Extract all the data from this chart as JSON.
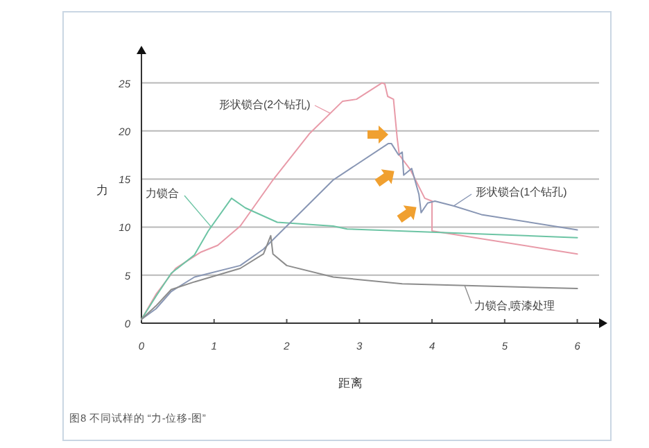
{
  "chart_data": {
    "type": "line",
    "xlabel": "距离",
    "ylabel": "力",
    "xlim": [
      0,
      6.3
    ],
    "ylim": [
      0,
      28
    ],
    "xticks": [
      0,
      1,
      2,
      3,
      4,
      5,
      6
    ],
    "yticks": [
      0,
      5,
      10,
      15,
      20,
      25
    ],
    "grid": "y",
    "annotations": [
      "图8 不同试样的 “力-位移-图”"
    ],
    "series": [
      {
        "name": "形状锁合(2个钻孔)",
        "color": "#e89aa8",
        "x": [
          0,
          0.2,
          0.47,
          0.82,
          1.05,
          1.36,
          1.81,
          2.31,
          2.77,
          2.96,
          3.31,
          3.35,
          3.39,
          3.47,
          3.52,
          3.55,
          3.7,
          3.9,
          4.0,
          4.0,
          6.0
        ],
        "values": [
          0.4,
          3,
          5.7,
          7.4,
          8.1,
          10.1,
          14.9,
          19.7,
          23.1,
          23.3,
          25,
          24.9,
          23.6,
          23.3,
          19.3,
          17.5,
          16,
          13,
          12.7,
          9.6,
          7.2
        ]
      },
      {
        "name": "力锁合",
        "color": "#6cc4a4",
        "x": [
          0,
          0.2,
          0.41,
          0.73,
          0.92,
          1.24,
          1.43,
          1.87,
          2.64,
          2.83,
          6.0
        ],
        "values": [
          0.4,
          2.8,
          5.2,
          7.1,
          9.6,
          13.0,
          12.0,
          10.5,
          10.1,
          9.8,
          8.9
        ]
      },
      {
        "name": "形状锁合(1个钻孔)",
        "color": "#8896b4",
        "x": [
          0,
          0.2,
          0.41,
          0.73,
          1.36,
          1.68,
          2.0,
          2.64,
          3.4,
          3.44,
          3.54,
          3.59,
          3.61,
          3.72,
          3.82,
          3.85,
          3.94,
          4.04,
          4.3,
          4.68,
          6.0
        ],
        "values": [
          0.4,
          1.5,
          3.3,
          4.8,
          6.0,
          7.7,
          10.1,
          14.9,
          18.7,
          18.7,
          17.5,
          17.8,
          15.4,
          16.1,
          13.4,
          11.5,
          12.5,
          12.7,
          12.2,
          11.3,
          9.7
        ]
      },
      {
        "name": "力锁合,喷漆处理",
        "color": "#8c8c8c",
        "x": [
          0,
          0.2,
          0.41,
          0.73,
          1.36,
          1.68,
          1.78,
          1.81,
          2.0,
          2.64,
          3.59,
          6.0
        ],
        "values": [
          0.4,
          1.8,
          3.5,
          4.3,
          5.7,
          7.2,
          9.1,
          7.2,
          6.0,
          4.8,
          4.1,
          3.6
        ]
      }
    ]
  }
}
